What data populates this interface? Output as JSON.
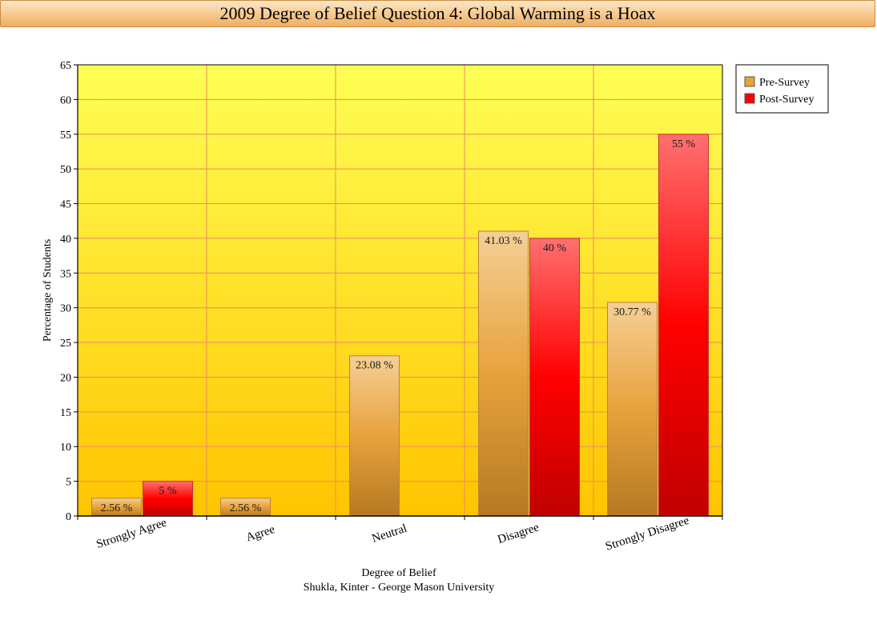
{
  "title": "2009 Degree of Belief Question 4: Global Warming is a Hoax",
  "chart_data": {
    "type": "bar",
    "title": "2009 Degree of Belief Question 4: Global Warming is a Hoax",
    "xlabel": "Degree of Belief",
    "subtitle": "Shukla, Kinter - George Mason University",
    "ylabel": "Percentage of Students",
    "ylim": [
      0,
      65
    ],
    "yticks": [
      0,
      5,
      10,
      15,
      20,
      25,
      30,
      35,
      40,
      45,
      50,
      55,
      60,
      65
    ],
    "categories": [
      "Strongly Agree",
      "Agree",
      "Neutral",
      "Disagree",
      "Strongly Disagree"
    ],
    "series": [
      {
        "name": "Pre-Survey",
        "values": [
          2.56,
          2.56,
          23.08,
          41.03,
          30.77
        ],
        "labels": [
          "2.56 %",
          "2.56 %",
          "23.08 %",
          "41.03 %",
          "30.77 %"
        ],
        "color": "#e8a23c"
      },
      {
        "name": "Post-Survey",
        "values": [
          5,
          null,
          null,
          40,
          55
        ],
        "labels": [
          "5 %",
          "",
          "",
          "40 %",
          "55 %"
        ],
        "color": "#ff0000"
      }
    ],
    "grid": true,
    "legend": "top-right"
  }
}
